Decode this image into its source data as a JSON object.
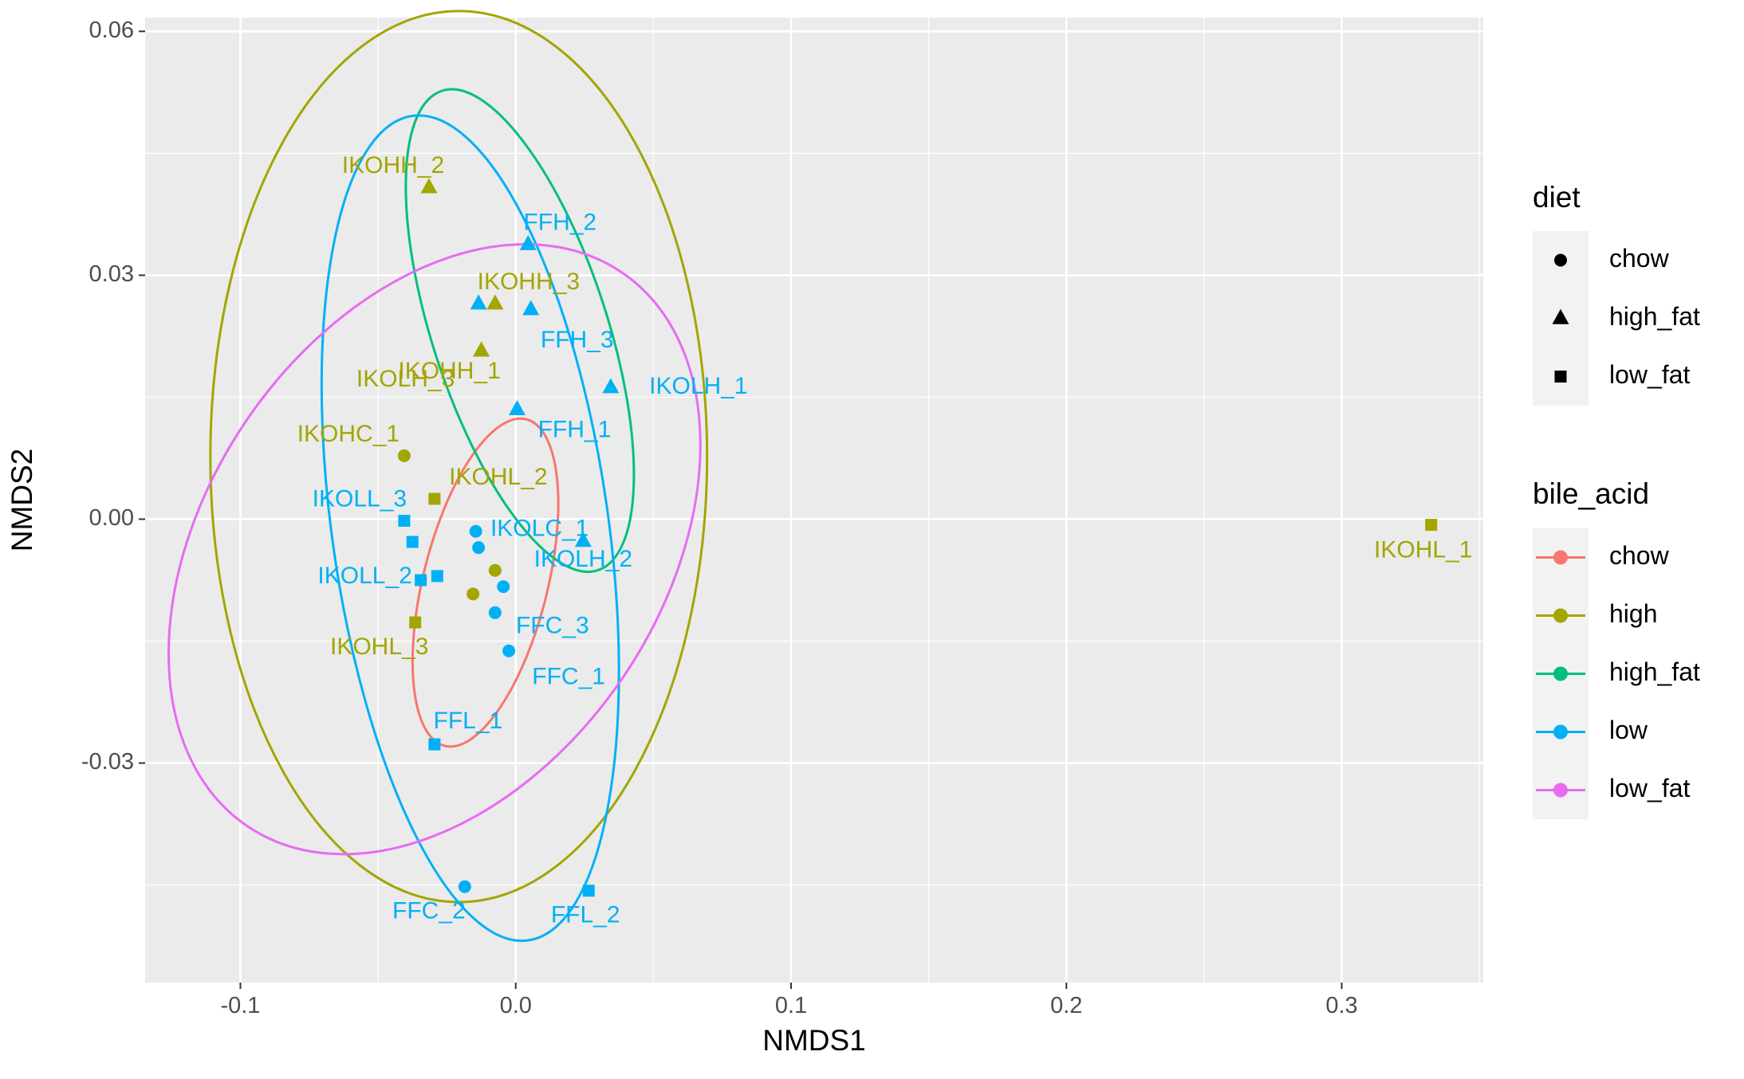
{
  "chart_data": {
    "type": "scatter",
    "title": "",
    "xlabel": "NMDS1",
    "ylabel": "NMDS2",
    "xlim": [
      -0.1346,
      0.3514
    ],
    "ylim": [
      -0.057,
      0.0617
    ],
    "x_ticks": [
      -0.1,
      0.0,
      0.1,
      0.2,
      0.3
    ],
    "x_tick_labels": [
      "-0.1",
      "0.0",
      "0.1",
      "0.2",
      "0.3"
    ],
    "y_ticks": [
      -0.03,
      0.0,
      0.03,
      0.06
    ],
    "y_tick_labels": [
      "-0.03",
      "0.00",
      "0.03",
      "0.06"
    ],
    "grid": true,
    "colors": {
      "chow": "#F8766D",
      "high": "#A3A500",
      "high_fat": "#00BF7D",
      "low": "#00B0F6",
      "low_fat": "#E76BF3",
      "panel_background": "#EBEBEB",
      "grid": "#FFFFFF",
      "legend_key_background": "#F2F2F2"
    },
    "legends": [
      {
        "title": "diet",
        "position": "right",
        "entries": [
          {
            "label": "chow",
            "shape": "circle"
          },
          {
            "label": "high_fat",
            "shape": "triangle"
          },
          {
            "label": "low_fat",
            "shape": "square"
          }
        ]
      },
      {
        "title": "bile_acid",
        "position": "right",
        "entries": [
          {
            "label": "chow",
            "color": "#F8766D"
          },
          {
            "label": "high",
            "color": "#A3A500"
          },
          {
            "label": "high_fat",
            "color": "#00BF7D"
          },
          {
            "label": "low",
            "color": "#00B0F6"
          },
          {
            "label": "low_fat",
            "color": "#E76BF3"
          }
        ]
      }
    ],
    "points": [
      {
        "label": "IKOHH_2",
        "x": -0.0315,
        "y": 0.0408,
        "diet": "high_fat",
        "bile_acid": "high"
      },
      {
        "label": "FFH_2",
        "x": 0.0045,
        "y": 0.0338,
        "diet": "high_fat",
        "bile_acid": "low"
      },
      {
        "label": "IKOHH_3",
        "x": -0.0075,
        "y": 0.0265,
        "diet": "high_fat",
        "bile_acid": "high"
      },
      {
        "label": "",
        "x": -0.0135,
        "y": 0.0265,
        "diet": "high_fat",
        "bile_acid": "low"
      },
      {
        "label": "FFH_3",
        "x": 0.0055,
        "y": 0.0258,
        "diet": "high_fat",
        "bile_acid": "low"
      },
      {
        "label": "IKOLH_3",
        "x": -0.0125,
        "y": 0.0207,
        "diet": "high_fat",
        "bile_acid": "high"
      },
      {
        "label": "IKOHH_1",
        "x": -0.0125,
        "y": 0.0207,
        "diet": "high_fat",
        "bile_acid": "high"
      },
      {
        "label": "IKOLH_1",
        "x": 0.0345,
        "y": 0.0162,
        "diet": "high_fat",
        "bile_acid": "low"
      },
      {
        "label": "FFH_1",
        "x": 0.0005,
        "y": 0.0135,
        "diet": "high_fat",
        "bile_acid": "low"
      },
      {
        "label": "IKOHC_1",
        "x": -0.0405,
        "y": 0.0078,
        "diet": "chow",
        "bile_acid": "high"
      },
      {
        "label": "IKOHL_2",
        "x": -0.0295,
        "y": 0.0025,
        "diet": "low_fat",
        "bile_acid": "high"
      },
      {
        "label": "IKOLL_3",
        "x": -0.0405,
        "y": -0.0002,
        "diet": "low_fat",
        "bile_acid": "low"
      },
      {
        "label": "IKOLC_1",
        "x": -0.0145,
        "y": -0.0015,
        "diet": "chow",
        "bile_acid": "low"
      },
      {
        "label": "",
        "x": -0.0375,
        "y": -0.0028,
        "diet": "low_fat",
        "bile_acid": "low"
      },
      {
        "label": "",
        "x": -0.0135,
        "y": -0.0035,
        "diet": "chow",
        "bile_acid": "low"
      },
      {
        "label": "IKOLH_2",
        "x": 0.0245,
        "y": -0.0027,
        "diet": "high_fat",
        "bile_acid": "low"
      },
      {
        "label": "",
        "x": -0.0075,
        "y": -0.0063,
        "diet": "chow",
        "bile_acid": "high"
      },
      {
        "label": "IKOLL_2",
        "x": -0.0345,
        "y": -0.0075,
        "diet": "low_fat",
        "bile_acid": "low"
      },
      {
        "label": "",
        "x": -0.0285,
        "y": -0.007,
        "diet": "low_fat",
        "bile_acid": "low"
      },
      {
        "label": "",
        "x": -0.0045,
        "y": -0.0083,
        "diet": "chow",
        "bile_acid": "low"
      },
      {
        "label": "",
        "x": -0.0155,
        "y": -0.0092,
        "diet": "chow",
        "bile_acid": "high"
      },
      {
        "label": "FFC_3",
        "x": -0.0075,
        "y": -0.0115,
        "diet": "chow",
        "bile_acid": "low"
      },
      {
        "label": "IKOHL_3",
        "x": -0.0365,
        "y": -0.0127,
        "diet": "low_fat",
        "bile_acid": "high"
      },
      {
        "label": "FFC_1",
        "x": -0.0025,
        "y": -0.0162,
        "diet": "chow",
        "bile_acid": "low"
      },
      {
        "label": "FFL_1",
        "x": -0.0295,
        "y": -0.0277,
        "diet": "low_fat",
        "bile_acid": "low"
      },
      {
        "label": "FFC_2",
        "x": -0.0185,
        "y": -0.0452,
        "diet": "chow",
        "bile_acid": "low"
      },
      {
        "label": "FFL_2",
        "x": 0.0265,
        "y": -0.0457,
        "diet": "low_fat",
        "bile_acid": "low"
      },
      {
        "label": "IKOHL_1",
        "x": 0.3325,
        "y": -0.0007,
        "diet": "low_fat",
        "bile_acid": "high"
      }
    ],
    "ellipses": [
      {
        "group": "chow",
        "cx": -0.011,
        "cy": -0.0078,
        "rx": 0.0226,
        "ry": 0.0207,
        "rotation_deg": 14
      },
      {
        "group": "high",
        "cx": -0.0207,
        "cy": 0.0077,
        "rx": 0.0902,
        "ry": 0.0548,
        "rotation_deg": 0
      },
      {
        "group": "high_fat",
        "cx": 0.0015,
        "cy": 0.0232,
        "rx": 0.0318,
        "ry": 0.031,
        "rotation_deg": -18
      },
      {
        "group": "low",
        "cx": -0.0165,
        "cy": -0.0011,
        "rx": 0.0502,
        "ry": 0.0512,
        "rotation_deg": -8
      },
      {
        "group": "low_fat",
        "cx": -0.0295,
        "cy": -0.0037,
        "rx": 0.0828,
        "ry": 0.0411,
        "rotation_deg": 34
      }
    ]
  }
}
